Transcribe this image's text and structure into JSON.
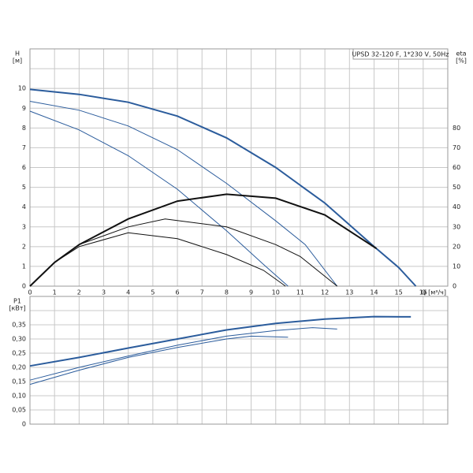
{
  "chart_data": [
    {
      "type": "line",
      "title": "UPSD 32-120 F, 1*230 V, 50Hz",
      "ylabel": "H",
      "ylabel_unit": "[м]",
      "y2label": "eta",
      "y2label_unit": "[%]",
      "xlabel": "Q [м³/ч]",
      "xlim": [
        0,
        17
      ],
      "xticks": [
        0,
        1,
        2,
        3,
        4,
        5,
        6,
        7,
        8,
        9,
        10,
        11,
        12,
        13,
        14,
        15,
        16
      ],
      "ylim": [
        0,
        12
      ],
      "yticks": [
        0,
        1,
        2,
        3,
        4,
        5,
        6,
        7,
        8,
        9,
        10
      ],
      "yminorticks": [
        11
      ],
      "y2lim": [
        0,
        120
      ],
      "y2ticks": [
        0,
        10,
        20,
        30,
        40,
        50,
        60,
        70,
        80
      ],
      "grid": true,
      "series": [
        {
          "color": "#2b5c9c",
          "line_width": 2,
          "x": [
            0,
            2,
            4,
            6,
            8,
            10,
            12,
            14,
            15,
            15.7
          ],
          "values": [
            9.95,
            9.7,
            9.3,
            8.6,
            7.5,
            6.0,
            4.2,
            2.0,
            0.95,
            0
          ]
        },
        {
          "color": "#2b5c9c",
          "line_width": 1,
          "x": [
            0,
            2,
            4,
            6,
            8,
            10,
            11.2,
            12.5
          ],
          "values": [
            9.35,
            8.9,
            8.1,
            6.9,
            5.2,
            3.3,
            2.1,
            0
          ]
        },
        {
          "color": "#2b5c9c",
          "line_width": 1,
          "x": [
            0,
            2,
            4,
            6,
            8,
            9.5,
            10.5
          ],
          "values": [
            8.85,
            7.9,
            6.6,
            4.9,
            2.8,
            1.1,
            0
          ]
        },
        {
          "color": "#111111",
          "line_width": 2,
          "axis": "y2",
          "x": [
            0,
            1,
            2,
            4,
            6,
            8,
            10,
            12,
            14.1
          ],
          "values": [
            0,
            12,
            21,
            34,
            43,
            46.5,
            44.5,
            36,
            19
          ]
        },
        {
          "color": "#111111",
          "line_width": 1,
          "axis": "y2",
          "x": [
            0,
            1,
            2,
            4,
            5.5,
            8,
            10,
            11,
            12.5
          ],
          "values": [
            0,
            12,
            21,
            30,
            34,
            30,
            21,
            15,
            0
          ]
        },
        {
          "color": "#111111",
          "line_width": 1,
          "axis": "y2",
          "x": [
            0,
            1,
            2,
            4,
            6,
            8,
            9.5,
            10.4
          ],
          "values": [
            0,
            12,
            20,
            27,
            24,
            16,
            8,
            0
          ]
        }
      ]
    },
    {
      "type": "line",
      "ylabel": "P1",
      "ylabel_unit": "[кВт]",
      "xlim": [
        0,
        17
      ],
      "xminorticks": [
        1,
        2,
        3,
        4,
        5,
        6,
        7,
        8,
        9,
        10,
        11,
        12,
        13,
        14,
        15,
        16
      ],
      "ylim": [
        0,
        0.45
      ],
      "yticks": [
        0,
        {
          "value": 0.05,
          "label": "0,05"
        },
        {
          "value": 0.1,
          "label": "0,10"
        },
        {
          "value": 0.15,
          "label": "0,15"
        },
        {
          "value": 0.2,
          "label": "0,20"
        },
        {
          "value": 0.25,
          "label": "0,25"
        },
        {
          "value": 0.3,
          "label": "0,30"
        },
        {
          "value": 0.35,
          "label": "0,35"
        }
      ],
      "yminorticks": [
        0.4
      ],
      "grid": true,
      "series": [
        {
          "color": "#2b5c9c",
          "line_width": 2,
          "x": [
            0,
            2,
            4,
            6,
            8,
            10,
            12,
            14,
            15.5
          ],
          "values": [
            0.205,
            0.235,
            0.268,
            0.3,
            0.332,
            0.355,
            0.37,
            0.379,
            0.378
          ]
        },
        {
          "color": "#2b5c9c",
          "line_width": 1,
          "x": [
            0,
            2,
            4,
            6,
            8,
            10,
            11.5,
            12.5
          ],
          "values": [
            0.155,
            0.2,
            0.24,
            0.278,
            0.31,
            0.33,
            0.34,
            0.335
          ]
        },
        {
          "color": "#2b5c9c",
          "line_width": 1,
          "x": [
            0,
            2,
            4,
            6,
            8,
            9,
            10.5
          ],
          "values": [
            0.14,
            0.19,
            0.235,
            0.27,
            0.3,
            0.31,
            0.306
          ]
        }
      ]
    }
  ]
}
